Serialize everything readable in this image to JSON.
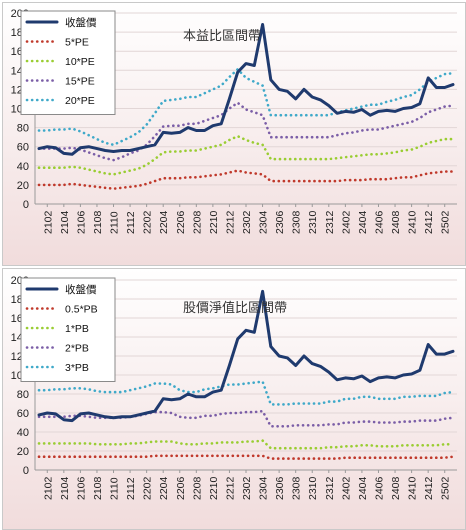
{
  "chart_data": [
    {
      "type": "line",
      "title": "本益比區間帶",
      "ylim": [
        0,
        200
      ],
      "yticks": [
        0,
        20,
        40,
        60,
        80,
        100,
        120,
        140,
        160,
        180,
        200
      ],
      "xtick_labels": [
        "2102",
        "2104",
        "2106",
        "2108",
        "2110",
        "2112",
        "2202",
        "2204",
        "2206",
        "2208",
        "2210",
        "2212",
        "2302",
        "2304",
        "2306",
        "2308",
        "2310",
        "2312",
        "2402",
        "2404",
        "2406",
        "2408",
        "2410",
        "2412",
        "2502"
      ],
      "grid": "horizontal",
      "legend_position": "top-left",
      "series": [
        {
          "name": "收盤價",
          "color": "#1f3a6e",
          "style": "solid",
          "values": [
            58,
            60,
            59,
            53,
            52,
            59,
            60,
            58,
            56,
            55,
            56,
            56,
            58,
            60,
            62,
            75,
            74,
            75,
            80,
            77,
            77,
            82,
            84,
            110,
            138,
            147,
            145,
            188,
            130,
            120,
            118,
            110,
            120,
            112,
            109,
            103,
            95,
            97,
            96,
            99,
            93,
            97,
            98,
            97,
            100,
            101,
            105,
            132,
            122,
            122,
            125
          ]
        },
        {
          "name": "5*PE",
          "color": "#c0392b",
          "style": "dotted",
          "values": [
            20,
            20,
            20,
            20,
            21,
            20,
            19,
            18,
            17,
            16,
            17,
            18,
            19,
            21,
            24,
            27,
            27,
            27,
            28,
            28,
            29,
            30,
            31,
            33,
            35,
            33,
            32,
            31,
            24,
            24,
            24,
            24,
            24,
            24,
            24,
            24,
            24,
            25,
            25,
            25,
            26,
            26,
            26,
            27,
            28,
            28,
            30,
            32,
            33,
            34,
            34
          ]
        },
        {
          "name": "10*PE",
          "color": "#9acd32",
          "style": "dotted",
          "values": [
            38,
            38,
            38,
            38,
            39,
            38,
            36,
            34,
            32,
            31,
            33,
            35,
            37,
            41,
            47,
            54,
            55,
            55,
            56,
            56,
            58,
            60,
            62,
            67,
            71,
            67,
            64,
            62,
            47,
            47,
            47,
            47,
            47,
            47,
            47,
            47,
            48,
            49,
            50,
            51,
            52,
            52,
            53,
            54,
            56,
            57,
            60,
            64,
            66,
            68,
            68
          ]
        },
        {
          "name": "15*PE",
          "color": "#7b5ea7",
          "style": "dotted",
          "values": [
            58,
            58,
            58,
            58,
            59,
            57,
            54,
            51,
            48,
            46,
            49,
            53,
            56,
            62,
            71,
            81,
            82,
            82,
            84,
            84,
            87,
            90,
            93,
            100,
            106,
            99,
            96,
            93,
            70,
            70,
            70,
            70,
            70,
            70,
            70,
            70,
            72,
            74,
            75,
            77,
            78,
            78,
            80,
            82,
            84,
            86,
            90,
            96,
            99,
            102,
            103
          ]
        },
        {
          "name": "20*PE",
          "color": "#3fa9c9",
          "style": "dotted",
          "values": [
            77,
            77,
            78,
            78,
            79,
            76,
            72,
            68,
            64,
            62,
            66,
            70,
            75,
            83,
            95,
            108,
            109,
            110,
            112,
            112,
            116,
            120,
            124,
            133,
            141,
            132,
            128,
            124,
            93,
            93,
            93,
            93,
            93,
            93,
            93,
            93,
            96,
            98,
            100,
            102,
            104,
            104,
            107,
            109,
            112,
            114,
            120,
            128,
            132,
            136,
            137
          ]
        }
      ]
    },
    {
      "type": "line",
      "title": "股價淨值比區間帶",
      "ylim": [
        0,
        200
      ],
      "yticks": [
        0,
        20,
        40,
        60,
        80,
        100,
        120,
        140,
        160,
        180,
        200
      ],
      "xtick_labels": [
        "2102",
        "2104",
        "2106",
        "2108",
        "2110",
        "2112",
        "2202",
        "2204",
        "2206",
        "2208",
        "2210",
        "2212",
        "2302",
        "2304",
        "2306",
        "2308",
        "2310",
        "2312",
        "2402",
        "2404",
        "2406",
        "2408",
        "2410",
        "2412",
        "2502"
      ],
      "grid": "horizontal",
      "legend_position": "top-left",
      "series": [
        {
          "name": "收盤價",
          "color": "#1f3a6e",
          "style": "solid",
          "values": [
            58,
            60,
            59,
            53,
            52,
            59,
            60,
            58,
            56,
            55,
            56,
            56,
            58,
            60,
            62,
            75,
            74,
            75,
            80,
            77,
            77,
            82,
            84,
            110,
            138,
            147,
            145,
            188,
            130,
            120,
            118,
            110,
            120,
            112,
            109,
            103,
            95,
            97,
            96,
            99,
            93,
            97,
            98,
            97,
            100,
            101,
            105,
            132,
            122,
            122,
            125
          ]
        },
        {
          "name": "0.5*PB",
          "color": "#c0392b",
          "style": "dotted",
          "values": [
            14,
            14,
            14,
            14,
            14,
            14,
            14,
            14,
            14,
            14,
            14,
            14,
            14,
            14,
            15,
            15,
            15,
            15,
            15,
            15,
            15,
            15,
            15,
            15,
            15,
            15,
            15,
            15,
            12,
            12,
            12,
            12,
            12,
            12,
            12,
            12,
            12,
            13,
            13,
            13,
            13,
            13,
            13,
            13,
            13,
            13,
            13,
            13,
            13,
            13,
            14
          ]
        },
        {
          "name": "1*PB",
          "color": "#9acd32",
          "style": "dotted",
          "values": [
            28,
            28,
            28,
            28,
            28,
            28,
            28,
            27,
            27,
            27,
            27,
            28,
            28,
            29,
            30,
            30,
            30,
            28,
            27,
            27,
            28,
            28,
            29,
            29,
            29,
            30,
            30,
            31,
            23,
            23,
            23,
            23,
            23,
            23,
            23,
            24,
            24,
            25,
            25,
            26,
            26,
            25,
            25,
            25,
            26,
            26,
            26,
            26,
            26,
            27,
            27
          ]
        },
        {
          "name": "2*PB",
          "color": "#7b5ea7",
          "style": "dotted",
          "values": [
            56,
            56,
            56,
            56,
            57,
            57,
            56,
            55,
            55,
            55,
            55,
            56,
            57,
            59,
            61,
            61,
            60,
            56,
            55,
            55,
            57,
            57,
            59,
            60,
            60,
            61,
            61,
            62,
            46,
            46,
            46,
            47,
            47,
            47,
            47,
            48,
            48,
            50,
            50,
            51,
            51,
            50,
            50,
            50,
            51,
            51,
            52,
            52,
            52,
            54,
            55
          ]
        },
        {
          "name": "3*PB",
          "color": "#3fa9c9",
          "style": "dotted",
          "values": [
            84,
            84,
            85,
            85,
            86,
            86,
            85,
            83,
            82,
            82,
            82,
            84,
            86,
            88,
            91,
            91,
            90,
            84,
            82,
            82,
            85,
            86,
            88,
            90,
            90,
            91,
            92,
            93,
            69,
            69,
            69,
            70,
            70,
            70,
            70,
            72,
            72,
            75,
            75,
            77,
            77,
            75,
            75,
            75,
            77,
            77,
            78,
            78,
            78,
            81,
            82
          ]
        }
      ]
    }
  ]
}
